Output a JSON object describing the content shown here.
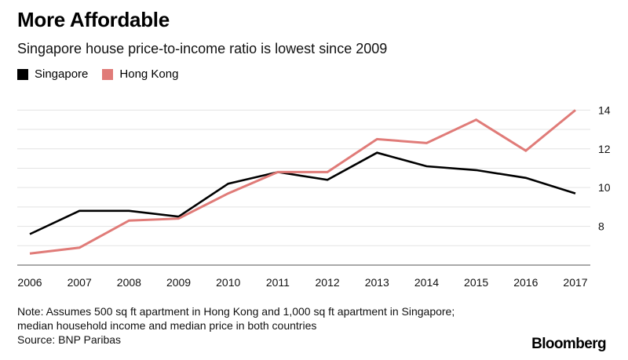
{
  "header": {
    "title": "More Affordable",
    "subtitle": "Singapore house price-to-income ratio is lowest since 2009"
  },
  "legend": [
    {
      "label": "Singapore",
      "color": "#000000"
    },
    {
      "label": "Hong Kong",
      "color": "#e07b78"
    }
  ],
  "chart_data": {
    "type": "line",
    "x": [
      "2006",
      "2007",
      "2008",
      "2009",
      "2010",
      "2011",
      "2012",
      "2013",
      "2014",
      "2015",
      "2016",
      "2017"
    ],
    "series": [
      {
        "name": "Singapore",
        "color": "#000000",
        "values": [
          7.6,
          8.8,
          8.8,
          8.5,
          10.2,
          10.8,
          10.4,
          11.8,
          11.1,
          10.9,
          10.5,
          9.7
        ]
      },
      {
        "name": "Hong Kong",
        "color": "#e07b78",
        "values": [
          6.6,
          6.9,
          8.3,
          8.4,
          9.7,
          10.8,
          10.8,
          12.5,
          12.3,
          13.5,
          11.9,
          14.0
        ]
      }
    ],
    "yticks": [
      8,
      10,
      12,
      14
    ],
    "ylim": [
      6.0,
      14.5
    ],
    "grid": true,
    "legend_position": "top-left",
    "y_axis_side": "right"
  },
  "footer": {
    "note_lines": [
      "Note: Assumes 500 sq ft apartment in Hong Kong and 1,000 sq ft apartment in Singapore;",
      "median household income and median price in both countries"
    ],
    "source": "Source: BNP Paribas",
    "brand": "Bloomberg"
  }
}
